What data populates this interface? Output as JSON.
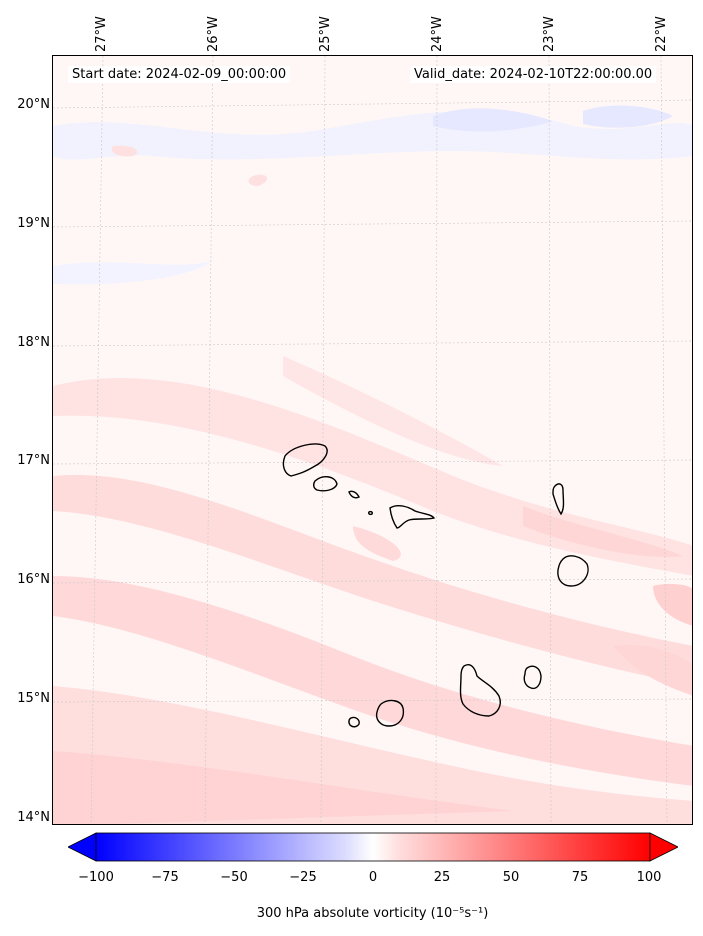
{
  "map": {
    "start_date": "Start date: 2024-02-09_00:00:00",
    "valid_date": "Valid_date: 2024-02-10T22:00:00.00",
    "lat_labels": [
      "20°N",
      "19°N",
      "18°N",
      "17°N",
      "16°N",
      "15°N",
      "14°N"
    ],
    "lon_labels": [
      "27°W",
      "26°W",
      "25°W",
      "24°W",
      "23°W",
      "22°W"
    ],
    "lat_range": [
      13.95,
      20.4
    ],
    "lon_range": [
      -27.35,
      -21.75
    ],
    "islands": [
      "Santo Antão",
      "São Vicente",
      "Santa Luzia",
      "São Nicolau",
      "Sal",
      "Boa Vista",
      "Brava",
      "Fogo",
      "Santiago",
      "Maio"
    ]
  },
  "colorbar": {
    "ticks": [
      "−100",
      "−75",
      "−50",
      "−25",
      "0",
      "25",
      "50",
      "75",
      "100"
    ],
    "label": "300 hPa absolute vorticity (10⁻⁵s⁻¹)",
    "min": -100,
    "max": 100,
    "low_color": "#0000ff",
    "mid_color": "#ffffff",
    "high_color": "#ff0000"
  }
}
